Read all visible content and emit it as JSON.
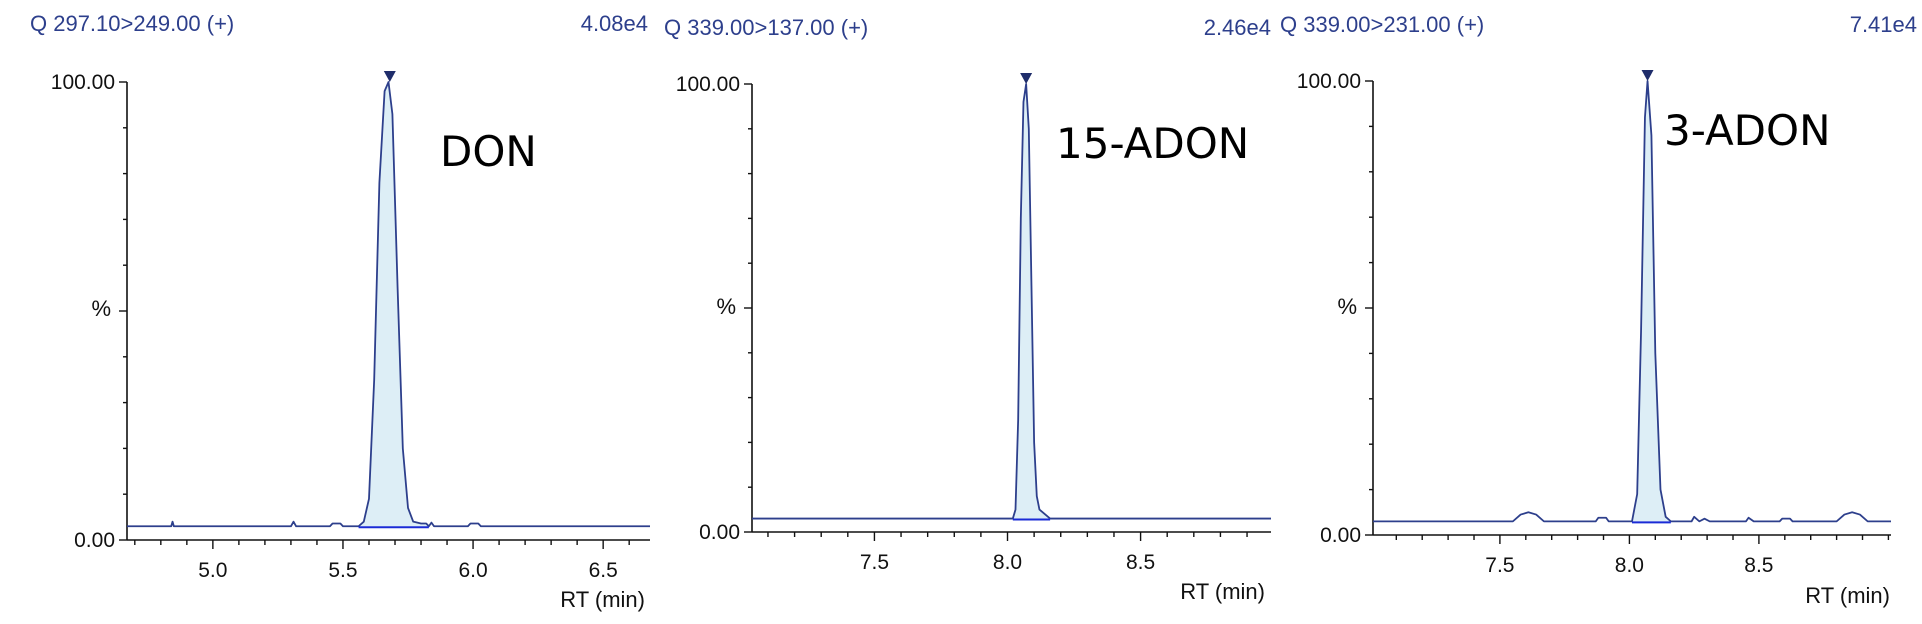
{
  "chart_data": [
    {
      "type": "line",
      "channel": "Q 297.10>249.00 (+)",
      "max_intensity": "4.08e4",
      "compound": "DON",
      "xlabel": "RT (min)",
      "ylabel": "%",
      "y_tick_labels": [
        "100.00",
        "0.00"
      ],
      "x_tick_labels": [
        "5.0",
        "5.5",
        "6.0",
        "6.5"
      ],
      "x_ticks": [
        5.0,
        5.5,
        6.0,
        6.5
      ],
      "xlim": [
        4.67,
        6.68
      ],
      "ylim": [
        0,
        100
      ],
      "baseline": 3,
      "peak_rt": 5.68,
      "series": [
        {
          "x": [
            4.67,
            4.84,
            4.845,
            4.85,
            5.3,
            5.31,
            5.32,
            5.45,
            5.46,
            5.49,
            5.5,
            5.56,
            5.58,
            5.6,
            5.62,
            5.64,
            5.66,
            5.675,
            5.69,
            5.71,
            5.73,
            5.75,
            5.77,
            5.8,
            5.82,
            5.83,
            5.84,
            5.85,
            5.87,
            5.98,
            5.99,
            6.02,
            6.03,
            6.68
          ],
          "y": [
            3,
            3,
            4,
            3,
            3,
            4,
            3,
            3,
            3.6,
            3.6,
            3,
            3,
            4,
            9,
            35,
            78,
            98,
            100,
            93,
            55,
            20,
            7,
            4,
            3.6,
            3.6,
            3,
            3.8,
            3,
            3,
            3,
            3.6,
            3.6,
            3,
            3
          ]
        }
      ]
    },
    {
      "type": "line",
      "channel": "Q 339.00>137.00 (+)",
      "max_intensity": "2.46e4",
      "compound": "15-ADON",
      "xlabel": "RT (min)",
      "ylabel": "%",
      "y_tick_labels": [
        "100.00",
        "0.00"
      ],
      "x_tick_labels": [
        "7.5",
        "8.0",
        "8.5"
      ],
      "x_ticks": [
        7.5,
        8.0,
        8.5
      ],
      "xlim": [
        7.04,
        8.99
      ],
      "ylim": [
        0,
        100
      ],
      "baseline": 3,
      "peak_rt": 8.07,
      "series": [
        {
          "x": [
            7.04,
            8.02,
            8.03,
            8.04,
            8.05,
            8.06,
            8.07,
            8.08,
            8.09,
            8.1,
            8.11,
            8.12,
            8.14,
            8.16,
            8.2,
            8.99
          ],
          "y": [
            3,
            3,
            5,
            25,
            70,
            96,
            100,
            90,
            55,
            20,
            8,
            5,
            4,
            3,
            3,
            3
          ]
        }
      ]
    },
    {
      "type": "line",
      "channel": "Q 339.00>231.00 (+)",
      "max_intensity": "7.41e4",
      "compound": "3-ADON",
      "xlabel": "RT (min)",
      "ylabel": "%",
      "y_tick_labels": [
        "100.00",
        "0.00"
      ],
      "x_tick_labels": [
        "7.5",
        "8.0",
        "8.5"
      ],
      "x_ticks": [
        7.5,
        8.0,
        8.5
      ],
      "xlim": [
        7.01,
        9.01
      ],
      "ylim": [
        0,
        100
      ],
      "baseline": 3,
      "peak_rt": 8.07,
      "series": [
        {
          "x": [
            7.01,
            7.55,
            7.58,
            7.61,
            7.64,
            7.67,
            7.87,
            7.88,
            7.91,
            7.92,
            8.01,
            8.03,
            8.045,
            8.06,
            8.07,
            8.085,
            8.1,
            8.12,
            8.14,
            8.16,
            8.24,
            8.25,
            8.27,
            8.29,
            8.31,
            8.33,
            8.45,
            8.46,
            8.48,
            8.58,
            8.59,
            8.62,
            8.63,
            8.8,
            8.83,
            8.86,
            8.89,
            8.92,
            9.01
          ],
          "y": [
            3,
            3,
            4.5,
            5,
            4.5,
            3,
            3,
            3.8,
            3.8,
            3,
            3,
            9,
            45,
            92,
            100,
            88,
            40,
            10,
            4,
            3,
            3,
            4,
            3,
            3.6,
            3,
            3,
            3,
            3.8,
            3,
            3,
            3.6,
            3.6,
            3,
            3,
            4.5,
            5,
            4.5,
            3,
            3
          ]
        }
      ]
    }
  ]
}
